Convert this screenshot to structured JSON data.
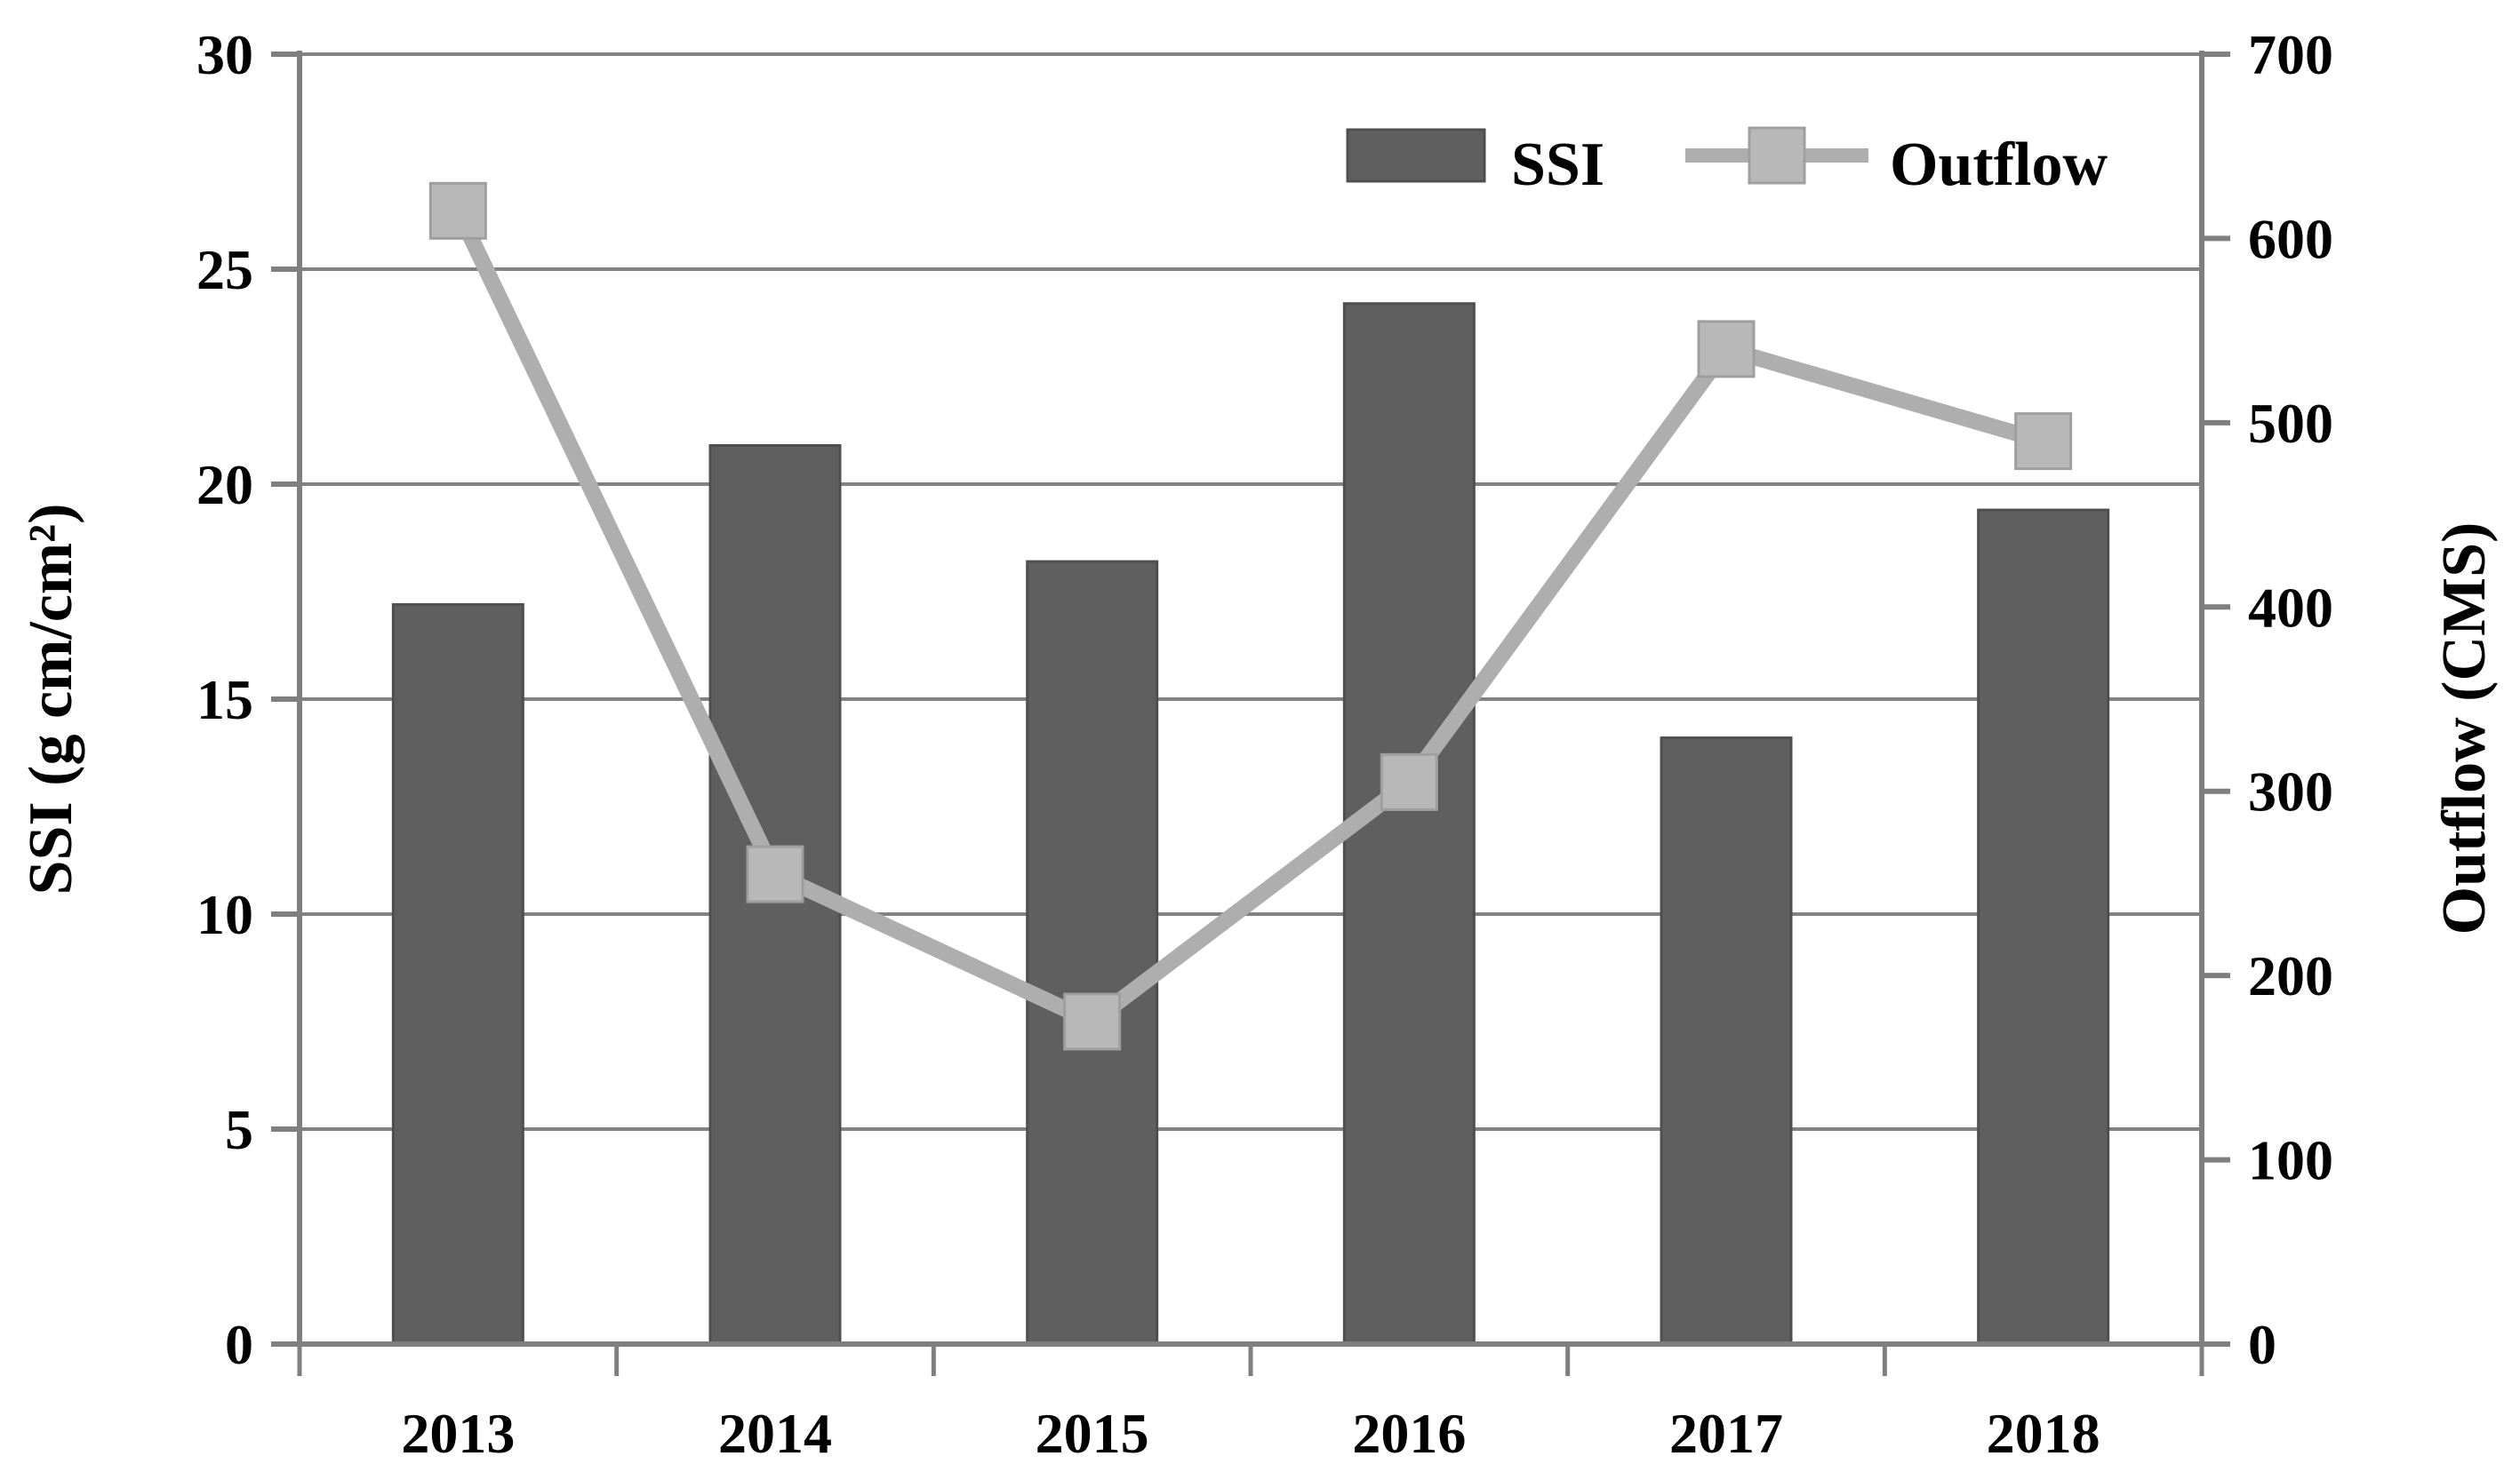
{
  "figure": {
    "type": "combo-chart",
    "background": "#ffffff",
    "title": ""
  },
  "legend": {
    "items": [
      {
        "label": "SSI",
        "series_type": "bar"
      },
      {
        "label": "Outflow",
        "series_type": "line"
      }
    ]
  },
  "chart_data": {
    "type": "combo",
    "categories": [
      "2013",
      "2014",
      "2015",
      "2016",
      "2017",
      "2018"
    ],
    "series": [
      {
        "name": "SSI",
        "chart_type": "bar",
        "axis": "left",
        "values": [
          17.2,
          20.9,
          18.2,
          24.2,
          14.1,
          19.4
        ]
      },
      {
        "name": "Outflow",
        "chart_type": "line",
        "axis": "right",
        "values": [
          615,
          255,
          175,
          305,
          540,
          490
        ]
      }
    ],
    "left_axis": {
      "title": "SSI (g cm/cm²)",
      "min": 0,
      "max": 30,
      "step": 5,
      "tick_labels": [
        "0",
        "5",
        "10",
        "15",
        "20",
        "25",
        "30"
      ]
    },
    "right_axis": {
      "title": "Outflow  (CMS)",
      "min": 0,
      "max": 700,
      "step": 100,
      "tick_labels": [
        "0",
        "100",
        "200",
        "300",
        "400",
        "500",
        "600",
        "700"
      ]
    },
    "x_axis": {
      "tick_labels": [
        "2013",
        "2014",
        "2015",
        "2016",
        "2017",
        "2018"
      ]
    },
    "grid": true,
    "legend_position": "top-right-inside",
    "colors": {
      "bar": "#5f5f5f",
      "bar_border": "#4f4f4f",
      "line": "#aeaeae",
      "marker_fill": "#b8b8b8",
      "marker_border": "#9f9f9f",
      "grid": "#828282",
      "axis": "#7f7f7f",
      "text": "#000000"
    }
  }
}
